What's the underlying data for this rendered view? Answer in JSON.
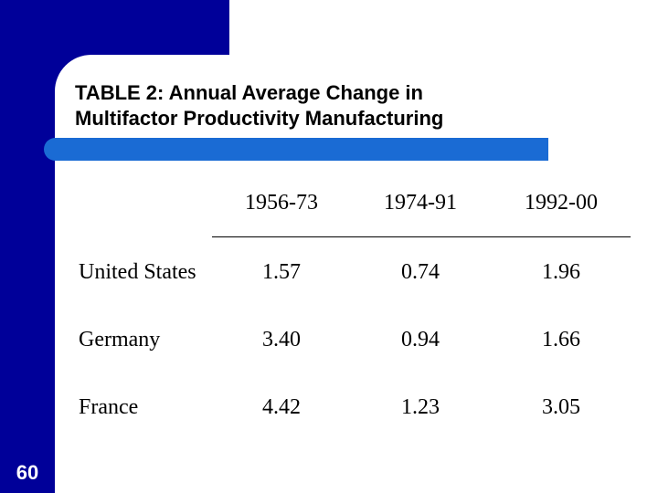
{
  "slide": {
    "title_line1": "TABLE 2: Annual Average Change in",
    "title_line2": "Multifactor Productivity Manufacturing",
    "slide_number": "60",
    "colors": {
      "sidebar": "#000099",
      "accent_bar": "#1a6bd4",
      "number_text": "#ffffff"
    }
  },
  "table": {
    "columns": [
      "1956-73",
      "1974-91",
      "1992-00"
    ],
    "rows": [
      {
        "country": "United States",
        "values": [
          "1.57",
          "0.74",
          "1.96"
        ]
      },
      {
        "country": "Germany",
        "values": [
          "3.40",
          "0.94",
          "1.66"
        ]
      },
      {
        "country": "France",
        "values": [
          "4.42",
          "1.23",
          "3.05"
        ]
      }
    ]
  }
}
